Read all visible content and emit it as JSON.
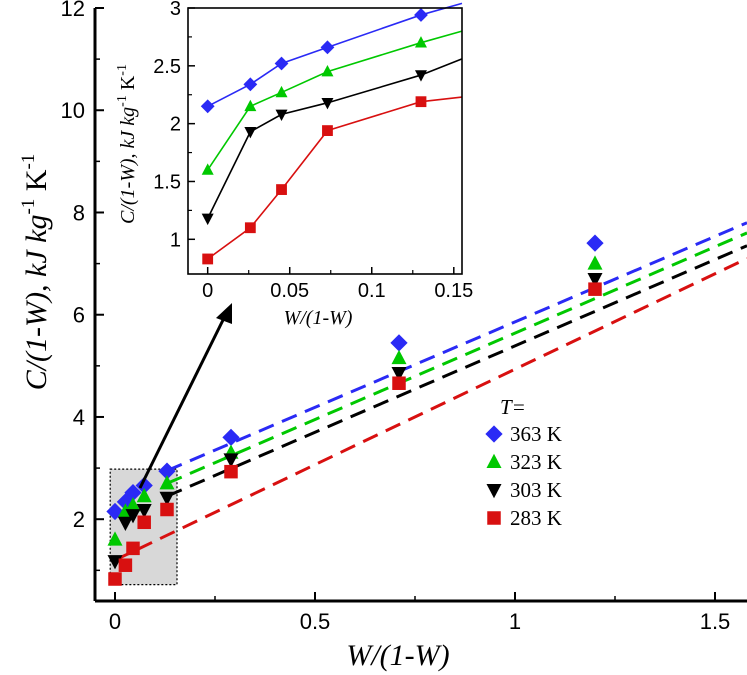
{
  "colors": {
    "s363": "#2a2af5",
    "s323": "#00c800",
    "s303": "#000000",
    "s283": "#d81010",
    "zoom_box_fill": "#d8d8d8"
  },
  "chart_data": [
    {
      "id": "main",
      "type": "scatter",
      "xlabel": {
        "plain": "W/(1-W)"
      },
      "ylabel": {
        "pre": "C/(1-W), kJ kg",
        "sup1": "-1",
        "mid": " K",
        "sup2": "-1"
      },
      "xlim": [
        -0.05,
        1.58
      ],
      "ylim": [
        0.4,
        12
      ],
      "xticks": [
        0,
        0.5,
        1,
        1.5
      ],
      "xtick_labels": [
        "0",
        "0.5",
        "1",
        "1.5"
      ],
      "yticks": [
        2,
        4,
        6,
        8,
        10,
        12
      ],
      "ytick_labels": [
        "2",
        "4",
        "6",
        "8",
        "10",
        "12"
      ],
      "legend_title": "T=",
      "legend_position": "center-right",
      "annotation": "dotted zoom box around low W/(1-W) data with arrow pointing to inset",
      "x": [
        0,
        0.026,
        0.045,
        0.073,
        0.13,
        0.29,
        0.71,
        1.2
      ],
      "series": [
        {
          "name": "363 K",
          "marker": "diamond",
          "values": [
            2.15,
            2.34,
            2.52,
            2.66,
            2.94,
            3.6,
            5.45,
            7.4
          ],
          "fit": {
            "x": [
              0.13,
              1.58
            ],
            "y": [
              2.95,
              7.8
            ]
          }
        },
        {
          "name": "323 K",
          "marker": "triangle-up",
          "values": [
            1.6,
            2.15,
            2.27,
            2.45,
            2.7,
            3.3,
            5.15,
            7.0
          ],
          "fit": {
            "x": [
              0.13,
              1.58
            ],
            "y": [
              2.7,
              7.6
            ]
          }
        },
        {
          "name": "303 K",
          "marker": "triangle-down",
          "values": [
            1.18,
            1.93,
            2.08,
            2.18,
            2.42,
            3.17,
            4.86,
            6.7
          ],
          "fit": {
            "x": [
              0.13,
              1.58
            ],
            "y": [
              2.45,
              7.35
            ]
          }
        },
        {
          "name": "283 K",
          "marker": "square",
          "values": [
            0.83,
            1.1,
            1.43,
            1.94,
            2.19,
            2.93,
            4.66,
            6.5
          ],
          "fit": {
            "x": [
              0.0,
              1.58
            ],
            "y": [
              1.2,
              7.1
            ]
          }
        }
      ]
    },
    {
      "id": "inset",
      "type": "line",
      "xlabel": "W/(1-W)",
      "ylabel": {
        "pre": "C/(1-W), kJ kg",
        "sup1": "-1",
        "mid": " K",
        "sup2": "-1"
      },
      "xlim": [
        -0.012,
        0.155
      ],
      "ylim": [
        0.7,
        3.0
      ],
      "xticks": [
        0,
        0.05,
        0.1,
        0.15
      ],
      "xtick_labels": [
        "0",
        "0.05",
        "0.1",
        "0.15"
      ],
      "yticks": [
        1,
        1.5,
        2,
        2.5,
        3
      ],
      "ytick_labels": [
        "1",
        "1.5",
        "2",
        "2.5",
        "3"
      ],
      "x": [
        0,
        0.026,
        0.045,
        0.073,
        0.13
      ],
      "series": [
        {
          "name": "363 K",
          "marker": "diamond",
          "values": [
            2.15,
            2.34,
            2.52,
            2.66,
            2.94
          ],
          "tail": [
            0.155,
            3.04
          ]
        },
        {
          "name": "323 K",
          "marker": "triangle-up",
          "values": [
            1.6,
            2.15,
            2.27,
            2.45,
            2.7
          ],
          "tail": [
            0.155,
            2.8
          ]
        },
        {
          "name": "303 K",
          "marker": "triangle-down",
          "values": [
            1.18,
            1.93,
            2.08,
            2.18,
            2.42
          ],
          "tail": [
            0.155,
            2.56
          ]
        },
        {
          "name": "283 K",
          "marker": "square",
          "values": [
            0.83,
            1.1,
            1.43,
            1.94,
            2.19
          ],
          "tail": [
            0.155,
            2.23
          ]
        }
      ]
    }
  ]
}
